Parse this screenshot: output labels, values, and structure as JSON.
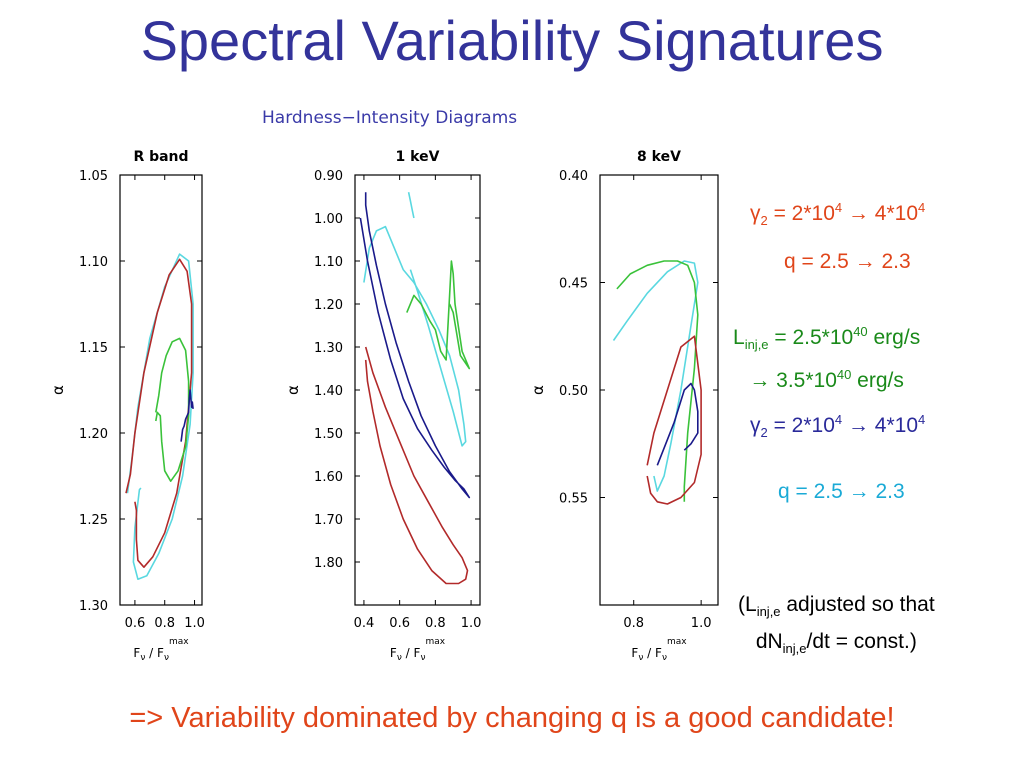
{
  "slide": {
    "title": "Spectral Variability Signatures",
    "figure_title": "Hardness−Intensity Diagrams",
    "conclusion": "=> Variability dominated by changing q is a good candidate!"
  },
  "colors": {
    "title": "#33339a",
    "red_text": "#e0451a",
    "green_text": "#1a8a1a",
    "blue_text": "#2a2a9a",
    "cyan_text": "#1aaad6",
    "curve_red": "#b22a2a",
    "curve_cyan": "#5ad8e0",
    "curve_green": "#3ac23a",
    "curve_blue": "#1a1a8a"
  },
  "notes": {
    "red": {
      "gamma_label": "γ",
      "gamma_sub": "2",
      "gamma_eq": " = 2*10",
      "exp1": "4",
      "arrow": " → 4*10",
      "exp2": "4",
      "q_text": "q = 2.5 → 2.3"
    },
    "green": {
      "L": "L",
      "L_sub": "inj,e",
      "eq": " = 2.5*10",
      "exp1": "40",
      "unit1": " erg/s",
      "arrow": "→ 3.5*10",
      "exp2": "40",
      "unit2": " erg/s"
    },
    "blue": {
      "gamma_label": "γ",
      "gamma_sub": "2",
      "gamma_eq": " = 2*10",
      "exp1": "4",
      "arrow": " → 4*10",
      "exp2": "4"
    },
    "cyan": {
      "q_text": "q = 2.5 → 2.3"
    },
    "paren": {
      "open": "(L",
      "sub1": "inj,e",
      "rest1": " adjusted so that",
      "dN": "dN",
      "sub2": "inj,e",
      "rest2": "/dt = const.)"
    }
  },
  "chart_data": [
    {
      "type": "line",
      "title": "R band",
      "xlabel": "F_ν / F_ν^max",
      "ylabel": "α",
      "xlim": [
        0.5,
        1.05
      ],
      "ylim": [
        1.05,
        1.3
      ],
      "y_inverted": true,
      "xticks": [
        0.6,
        0.8,
        1.0
      ],
      "xtick_labels": [
        "0.6",
        "0.8",
        "1.0"
      ],
      "yticks": [
        1.05,
        1.1,
        1.15,
        1.2,
        1.25,
        1.3
      ],
      "ytick_labels": [
        "1.05",
        "1.10",
        "1.15",
        "1.20",
        "1.25",
        "1.30"
      ],
      "series": [
        {
          "color": "curve_cyan",
          "x": [
            0.55,
            0.58,
            0.62,
            0.7,
            0.8,
            0.9,
            0.96,
            0.99,
            0.99,
            0.97,
            0.92,
            0.85,
            0.76,
            0.68,
            0.62,
            0.59,
            0.6,
            0.63,
            0.64
          ],
          "y": [
            1.235,
            1.215,
            1.185,
            1.145,
            1.115,
            1.096,
            1.1,
            1.125,
            1.165,
            1.195,
            1.225,
            1.25,
            1.27,
            1.283,
            1.285,
            1.275,
            1.255,
            1.233,
            1.232
          ]
        },
        {
          "color": "curve_red",
          "x": [
            0.54,
            0.57,
            0.6,
            0.66,
            0.75,
            0.83,
            0.9,
            0.95,
            0.98,
            0.98,
            0.94,
            0.88,
            0.8,
            0.72,
            0.66,
            0.62,
            0.61,
            0.61,
            0.6
          ],
          "y": [
            1.235,
            1.224,
            1.2,
            1.165,
            1.13,
            1.108,
            1.099,
            1.106,
            1.125,
            1.165,
            1.205,
            1.235,
            1.258,
            1.272,
            1.278,
            1.274,
            1.262,
            1.245,
            1.24
          ]
        },
        {
          "color": "curve_green",
          "x": [
            0.74,
            0.76,
            0.78,
            0.81,
            0.85,
            0.9,
            0.94,
            0.96,
            0.96,
            0.94,
            0.89,
            0.84,
            0.8,
            0.78,
            0.77,
            0.75,
            0.74
          ],
          "y": [
            1.188,
            1.178,
            1.165,
            1.155,
            1.147,
            1.145,
            1.152,
            1.17,
            1.19,
            1.208,
            1.222,
            1.228,
            1.222,
            1.205,
            1.19,
            1.188,
            1.193
          ]
        },
        {
          "color": "curve_blue",
          "x": [
            0.91,
            0.92,
            0.93,
            0.94,
            0.95,
            0.96,
            0.965,
            0.97,
            0.98,
            0.985,
            0.99
          ],
          "y": [
            1.205,
            1.198,
            1.196,
            1.192,
            1.19,
            1.188,
            1.18,
            1.175,
            1.185,
            1.182,
            1.186
          ]
        }
      ]
    },
    {
      "type": "line",
      "title": "1 keV",
      "xlabel": "F_ν / F_ν^max",
      "ylabel": "α",
      "xlim": [
        0.35,
        1.05
      ],
      "ylim": [
        0.9,
        1.9
      ],
      "y_inverted": true,
      "xticks": [
        0.4,
        0.6,
        0.8,
        1.0
      ],
      "xtick_labels": [
        "0.4",
        "0.6",
        "0.8",
        "1.0"
      ],
      "yticks": [
        0.9,
        1.0,
        1.1,
        1.2,
        1.3,
        1.4,
        1.5,
        1.6,
        1.7,
        1.8
      ],
      "ytick_labels": [
        "0.90",
        "1.00",
        "1.10",
        "1.20",
        "1.30",
        "1.40",
        "1.50",
        "1.60",
        "1.70",
        "1.80"
      ],
      "series": [
        {
          "color": "curve_cyan",
          "x": [
            0.4,
            0.43,
            0.47,
            0.52,
            0.57,
            0.62,
            0.68,
            0.75,
            0.82,
            0.88,
            0.93,
            0.96,
            0.97,
            0.95,
            0.9,
            0.83,
            0.76,
            0.7,
            0.66
          ],
          "y": [
            1.15,
            1.07,
            1.03,
            1.02,
            1.07,
            1.12,
            1.15,
            1.2,
            1.26,
            1.32,
            1.4,
            1.48,
            1.52,
            1.53,
            1.45,
            1.35,
            1.25,
            1.17,
            1.12
          ]
        },
        {
          "color": "curve_cyan",
          "x": [
            0.65,
            0.66,
            0.67,
            0.68
          ],
          "y": [
            0.94,
            0.96,
            0.98,
            1.0
          ]
        },
        {
          "color": "curve_red",
          "x": [
            0.41,
            0.45,
            0.52,
            0.6,
            0.68,
            0.76,
            0.84,
            0.9,
            0.95,
            0.98,
            0.97,
            0.93,
            0.86,
            0.78,
            0.7,
            0.62,
            0.55,
            0.49,
            0.45,
            0.42,
            0.41
          ],
          "y": [
            1.3,
            1.36,
            1.44,
            1.52,
            1.6,
            1.66,
            1.72,
            1.76,
            1.79,
            1.82,
            1.84,
            1.85,
            1.85,
            1.82,
            1.77,
            1.7,
            1.62,
            1.53,
            1.45,
            1.38,
            1.33
          ]
        },
        {
          "color": "curve_green",
          "x": [
            0.64,
            0.68,
            0.72,
            0.77,
            0.8,
            0.83,
            0.86,
            0.88,
            0.89,
            0.9,
            0.91,
            0.95,
            0.99,
            0.94,
            0.9,
            0.88
          ],
          "y": [
            1.22,
            1.18,
            1.2,
            1.24,
            1.26,
            1.31,
            1.33,
            1.18,
            1.1,
            1.13,
            1.2,
            1.31,
            1.35,
            1.32,
            1.22,
            1.2
          ]
        },
        {
          "color": "curve_blue",
          "x": [
            0.38,
            0.42,
            0.48,
            0.55,
            0.62,
            0.7,
            0.78,
            0.85,
            0.91,
            0.96,
            0.99,
            0.95,
            0.88,
            0.8,
            0.72,
            0.65,
            0.58,
            0.52,
            0.47,
            0.43,
            0.41,
            0.41
          ],
          "y": [
            1.0,
            1.1,
            1.22,
            1.33,
            1.42,
            1.49,
            1.54,
            1.58,
            1.61,
            1.63,
            1.65,
            1.63,
            1.59,
            1.53,
            1.46,
            1.38,
            1.29,
            1.2,
            1.11,
            1.03,
            0.97,
            0.94
          ]
        }
      ]
    },
    {
      "type": "line",
      "title": "8 keV",
      "xlabel": "F_ν / F_ν^max",
      "ylabel": "α",
      "xlim": [
        0.7,
        1.05
      ],
      "ylim": [
        0.4,
        0.6
      ],
      "y_inverted": true,
      "xticks": [
        0.8,
        1.0
      ],
      "xtick_labels": [
        "0.8",
        "1.0"
      ],
      "yticks": [
        0.4,
        0.45,
        0.5,
        0.55
      ],
      "ytick_labels": [
        "0.40",
        "0.45",
        "0.50",
        "0.55"
      ],
      "series": [
        {
          "color": "curve_cyan",
          "x": [
            0.74,
            0.78,
            0.84,
            0.9,
            0.95,
            0.98,
            0.99,
            0.97,
            0.94,
            0.91,
            0.89,
            0.87,
            0.86
          ],
          "y": [
            0.477,
            0.468,
            0.455,
            0.445,
            0.44,
            0.441,
            0.45,
            0.47,
            0.5,
            0.525,
            0.54,
            0.547,
            0.54
          ]
        },
        {
          "color": "curve_green",
          "x": [
            0.75,
            0.79,
            0.84,
            0.89,
            0.93,
            0.96,
            0.98,
            0.99,
            0.98,
            0.96,
            0.95,
            0.95
          ],
          "y": [
            0.453,
            0.446,
            0.442,
            0.44,
            0.44,
            0.442,
            0.45,
            0.465,
            0.49,
            0.52,
            0.545,
            0.552
          ]
        },
        {
          "color": "curve_red",
          "x": [
            0.84,
            0.85,
            0.87,
            0.9,
            0.94,
            0.98,
            1.0,
            1.0,
            0.98,
            0.94,
            0.9,
            0.86,
            0.84
          ],
          "y": [
            0.54,
            0.548,
            0.552,
            0.553,
            0.55,
            0.543,
            0.53,
            0.5,
            0.475,
            0.48,
            0.5,
            0.52,
            0.535
          ]
        },
        {
          "color": "curve_blue",
          "x": [
            0.87,
            0.89,
            0.92,
            0.95,
            0.97,
            0.98,
            0.99,
            0.99,
            0.97,
            0.95
          ],
          "y": [
            0.535,
            0.527,
            0.515,
            0.5,
            0.497,
            0.5,
            0.51,
            0.52,
            0.525,
            0.528
          ]
        }
      ]
    }
  ]
}
